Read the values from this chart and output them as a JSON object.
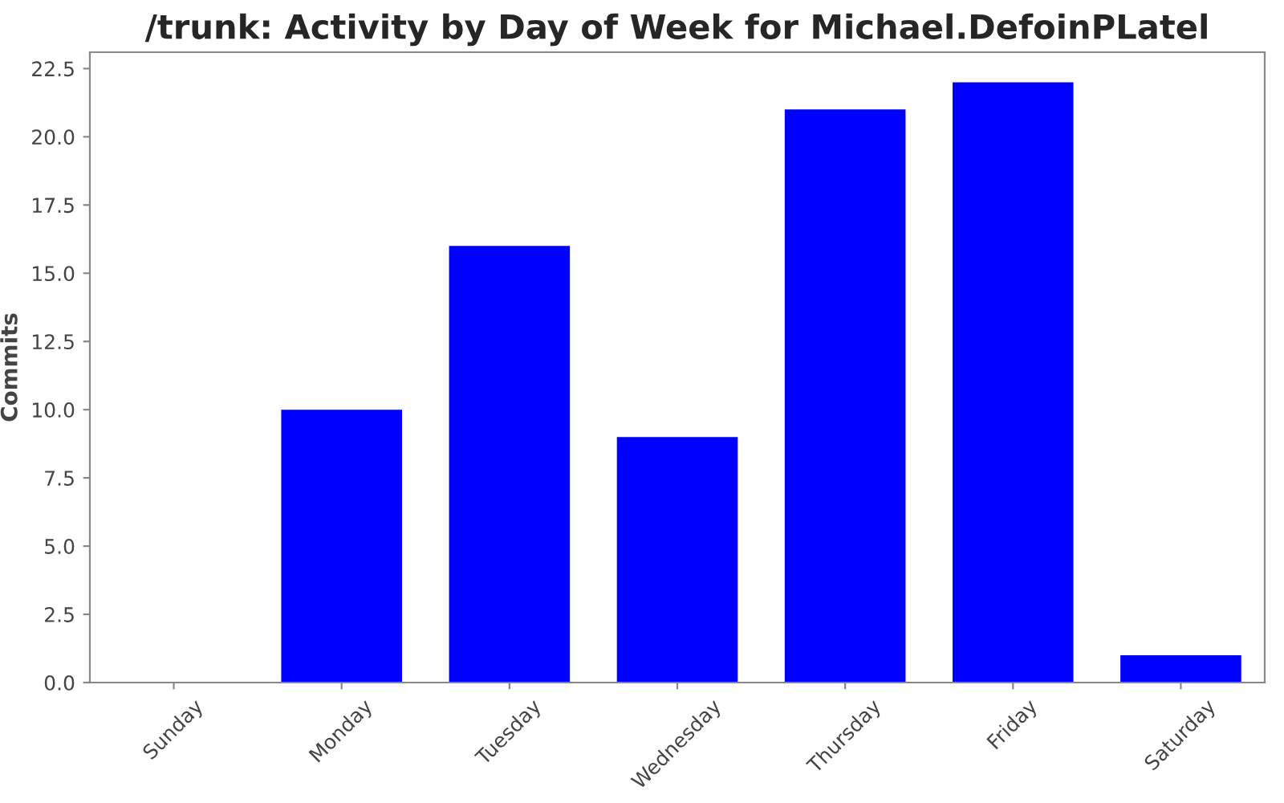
{
  "chart_data": {
    "type": "bar",
    "title": "/trunk: Activity by Day of Week for Michael.DefoinPLatel",
    "ylabel": "Commits",
    "categories": [
      "Sunday",
      "Monday",
      "Tuesday",
      "Wednesday",
      "Thursday",
      "Friday",
      "Saturday"
    ],
    "values": [
      0,
      10,
      16,
      9,
      21,
      22,
      1
    ],
    "color": "#0000ff",
    "ylim": [
      0,
      23.1
    ],
    "yticks": [
      {
        "value": 0,
        "label": "0.0"
      },
      2.5,
      {
        "value": 5,
        "label": "5.0"
      },
      7.5,
      {
        "value": 10,
        "label": "10.0"
      },
      12.5,
      {
        "value": 15,
        "label": "15.0"
      },
      17.5,
      {
        "value": 20,
        "label": "20.0"
      },
      22.5
    ],
    "grid": false
  }
}
